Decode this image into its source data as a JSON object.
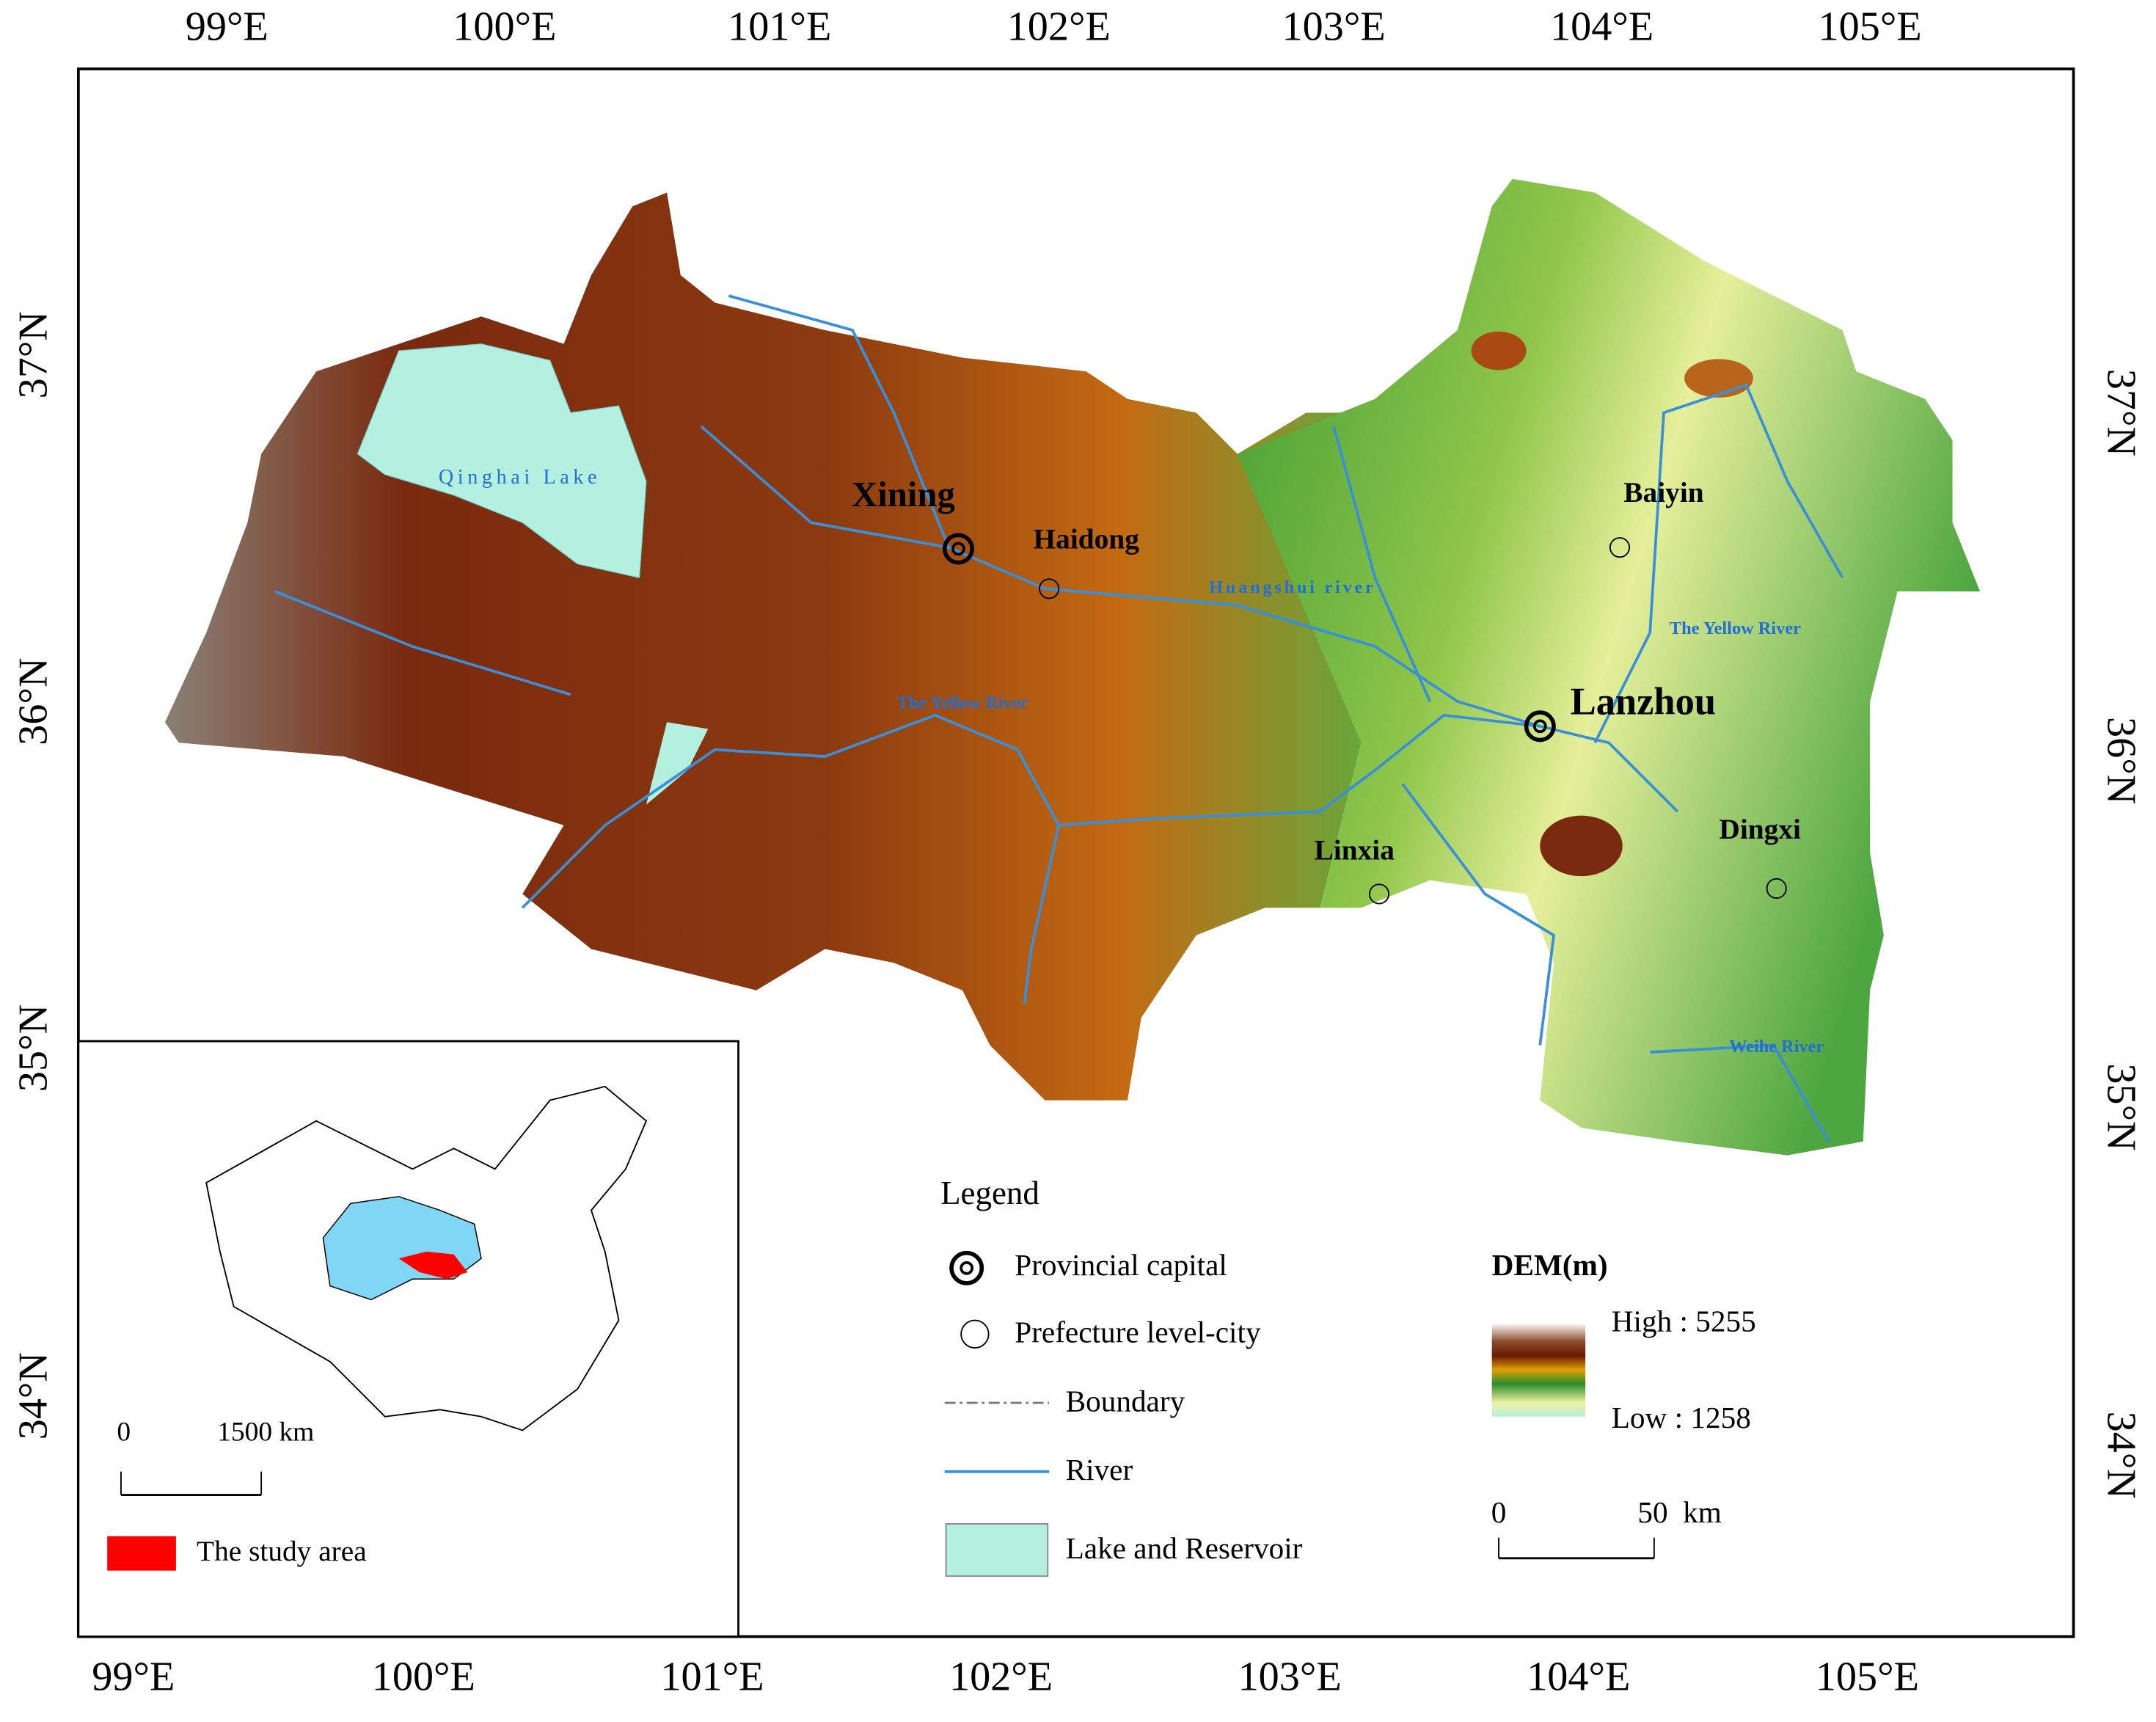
{
  "lon_top": [
    "99°E",
    "100°E",
    "101°E",
    "102°E",
    "103°E",
    "104°E",
    "105°E"
  ],
  "lon_bottom": [
    "99°E",
    "100°E",
    "101°E",
    "102°E",
    "103°E",
    "104°E",
    "105°E"
  ],
  "lat_left": [
    "37°N",
    "36°N",
    "35°N",
    "34°N"
  ],
  "lat_right": [
    "37°N",
    "36°N",
    "35°N",
    "34°N"
  ],
  "places": {
    "capitals": [
      "Xining",
      "Lanzhou"
    ],
    "prefectures": [
      "Haidong",
      "Baiyin",
      "Linxia",
      "Dingxi"
    ]
  },
  "water_labels": [
    "Qinghai Lake",
    "Huangshui river",
    "The Yellow River",
    "The Yellow River",
    "Weihe River"
  ],
  "legend": {
    "title": "Legend",
    "items": [
      "Provincial capital",
      "Prefecture level-city",
      "Boundary",
      "River",
      "Lake and Reservoir"
    ]
  },
  "dem": {
    "title": "DEM(m)",
    "high": "High : 5255",
    "low": "Low : 1258"
  },
  "scale": {
    "start": "0",
    "end": "50",
    "unit": "km"
  },
  "inset": {
    "scale_start": "0",
    "scale_end": "1500 km",
    "legend": "The study area"
  }
}
